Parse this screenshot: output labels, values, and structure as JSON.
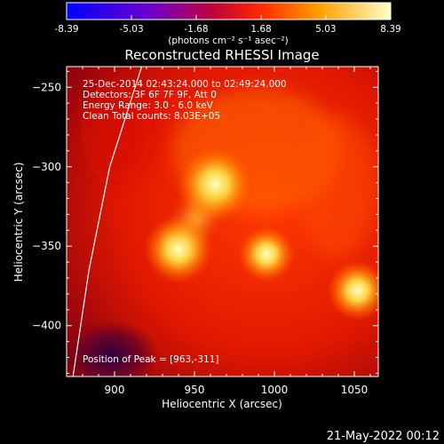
{
  "colorbar": {
    "ticks": [
      "-8.39",
      "-5.03",
      "-1.68",
      "1.68",
      "5.03",
      "8.39"
    ],
    "unit_label": "(photons cm⁻² s⁻¹ asec⁻²)",
    "range": [
      -8.39,
      8.39
    ]
  },
  "chart_data": {
    "type": "heatmap",
    "title": "Reconstructed RHESSI Image",
    "xlabel": "Heliocentric X (arcsec)",
    "ylabel": "Heliocentric Y (arcsec)",
    "xlim": [
      870,
      1065
    ],
    "ylim": [
      -432,
      -237
    ],
    "x_ticks": [
      900,
      950,
      1000,
      1050
    ],
    "y_ticks": [
      -250,
      -300,
      -350,
      -400
    ],
    "sources": [
      {
        "x": 963,
        "y": -311,
        "value": 8.39
      },
      {
        "x": 940,
        "y": -352,
        "value": 7.2
      },
      {
        "x": 995,
        "y": -355,
        "value": 5.5
      },
      {
        "x": 1052,
        "y": -378,
        "value": 6.0
      }
    ],
    "limb": [
      [
        917,
        -237
      ],
      [
        897,
        -300
      ],
      [
        884,
        -365
      ],
      [
        874,
        -432
      ]
    ],
    "peak": [
      963,
      -311
    ]
  },
  "annotations": [
    "25-Dec-2014 02:43:24.000 to 02:49:24.000",
    "Detectors: 3F 6F 7F 9F, Att 0",
    "Energy Range: 3.0 - 6.0 keV",
    "Clean    Total counts: 8.03E+05"
  ],
  "peak_label": "Position of Peak = [963,-311]",
  "footer_date": "21-May-2022 00:12"
}
